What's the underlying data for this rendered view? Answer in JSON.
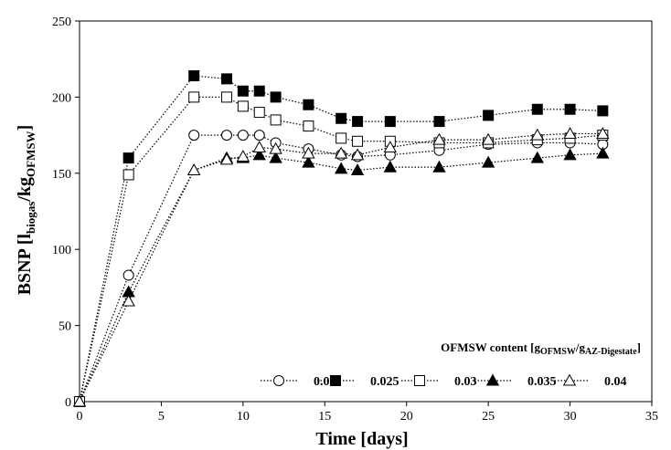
{
  "chart_data": {
    "type": "line",
    "xlabel": "Time [days]",
    "ylabel_main": "BSNP [l",
    "ylabel_sub1": "biogas",
    "ylabel_mid": "/kg",
    "ylabel_sub2": "OFMSW",
    "ylabel_end": "]",
    "xlim": [
      0,
      35
    ],
    "ylim": [
      0,
      250
    ],
    "xticks": [
      "0",
      "5",
      "10",
      "15",
      "20",
      "25",
      "30",
      "35"
    ],
    "yticks": [
      "0",
      "50",
      "100",
      "150",
      "200",
      "250"
    ],
    "grid": false,
    "legend_placement": "bottom-right",
    "legend_title_main": "OFMSW content [g",
    "legend_title_sub1": "OFMSW",
    "legend_title_mid": "/g",
    "legend_title_sub2": "AZ-Digestate",
    "legend_title_end": "]",
    "series": [
      {
        "name": "0.02",
        "marker": "circle",
        "fill": "open",
        "x": [
          0,
          3,
          7,
          9,
          10,
          11,
          12,
          14,
          16,
          17,
          19,
          22,
          25,
          28,
          30,
          32
        ],
        "y": [
          0,
          83,
          175,
          175,
          175,
          175,
          170,
          166,
          162,
          161,
          162,
          165,
          169,
          170,
          170,
          169
        ]
      },
      {
        "name": "0.025",
        "marker": "square",
        "fill": "filled",
        "x": [
          0,
          3,
          7,
          9,
          10,
          11,
          12,
          14,
          16,
          17,
          19,
          22,
          25,
          28,
          30,
          32
        ],
        "y": [
          0,
          160,
          214,
          212,
          204,
          204,
          200,
          195,
          186,
          184,
          184,
          184,
          188,
          192,
          192,
          191
        ]
      },
      {
        "name": "0.03",
        "marker": "square",
        "fill": "open",
        "x": [
          0,
          3,
          7,
          9,
          10,
          11,
          12,
          14,
          16,
          17,
          19,
          22,
          25,
          28,
          30,
          32
        ],
        "y": [
          0,
          149,
          200,
          200,
          194,
          190,
          185,
          181,
          173,
          171,
          171,
          170,
          170,
          172,
          173,
          175
        ]
      },
      {
        "name": "0.035",
        "marker": "triangle",
        "fill": "filled",
        "x": [
          0,
          3,
          7,
          9,
          10,
          11,
          12,
          14,
          16,
          17,
          19,
          22,
          25,
          28,
          30,
          32
        ],
        "y": [
          0,
          72,
          152,
          160,
          160,
          162,
          160,
          157,
          153,
          152,
          154,
          154,
          157,
          160,
          162,
          163
        ]
      },
      {
        "name": "0.04",
        "marker": "triangle",
        "fill": "open",
        "x": [
          0,
          3,
          7,
          9,
          10,
          11,
          12,
          14,
          16,
          17,
          19,
          22,
          25,
          28,
          30,
          32
        ],
        "y": [
          0,
          66,
          152,
          159,
          161,
          167,
          166,
          163,
          163,
          162,
          167,
          172,
          172,
          175,
          176,
          176
        ]
      }
    ]
  }
}
